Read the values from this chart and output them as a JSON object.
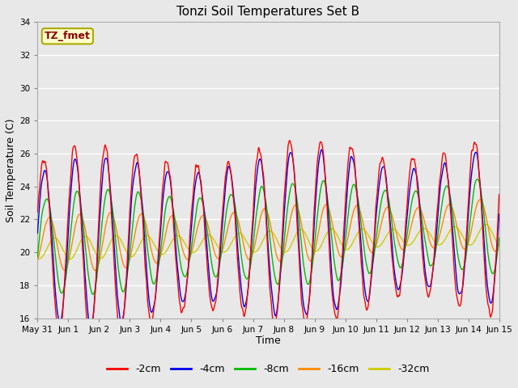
{
  "title": "Tonzi Soil Temperatures Set B",
  "xlabel": "Time",
  "ylabel": "Soil Temperature (C)",
  "ylim": [
    16,
    34
  ],
  "annotation_text": "TZ_fmet",
  "annotation_color": "#8B0000",
  "annotation_bg": "#FFFFCC",
  "annotation_border": "#AAAA00",
  "bg_color": "#E8E8E8",
  "grid_color": "#FFFFFF",
  "series_colors": [
    "#FF0000",
    "#0000EE",
    "#00BB00",
    "#FF8800",
    "#CCCC00"
  ],
  "series_labels": [
    "-2cm",
    "-4cm",
    "-8cm",
    "-16cm",
    "-32cm"
  ],
  "x_tick_labels": [
    "May 31",
    "Jun 1",
    "Jun 2",
    "Jun 3",
    "Jun 4",
    "Jun 5",
    "Jun 6",
    "Jun 7",
    "Jun 8",
    "Jun 9",
    "Jun 10",
    "Jun 11",
    "Jun 12",
    "Jun 13",
    "Jun 14",
    "Jun 15"
  ],
  "num_days": 15,
  "ppd": 96,
  "yticks": [
    16,
    18,
    20,
    22,
    24,
    26,
    28,
    30,
    32,
    34
  ],
  "figsize": [
    6.4,
    4.8
  ],
  "dpi": 100
}
